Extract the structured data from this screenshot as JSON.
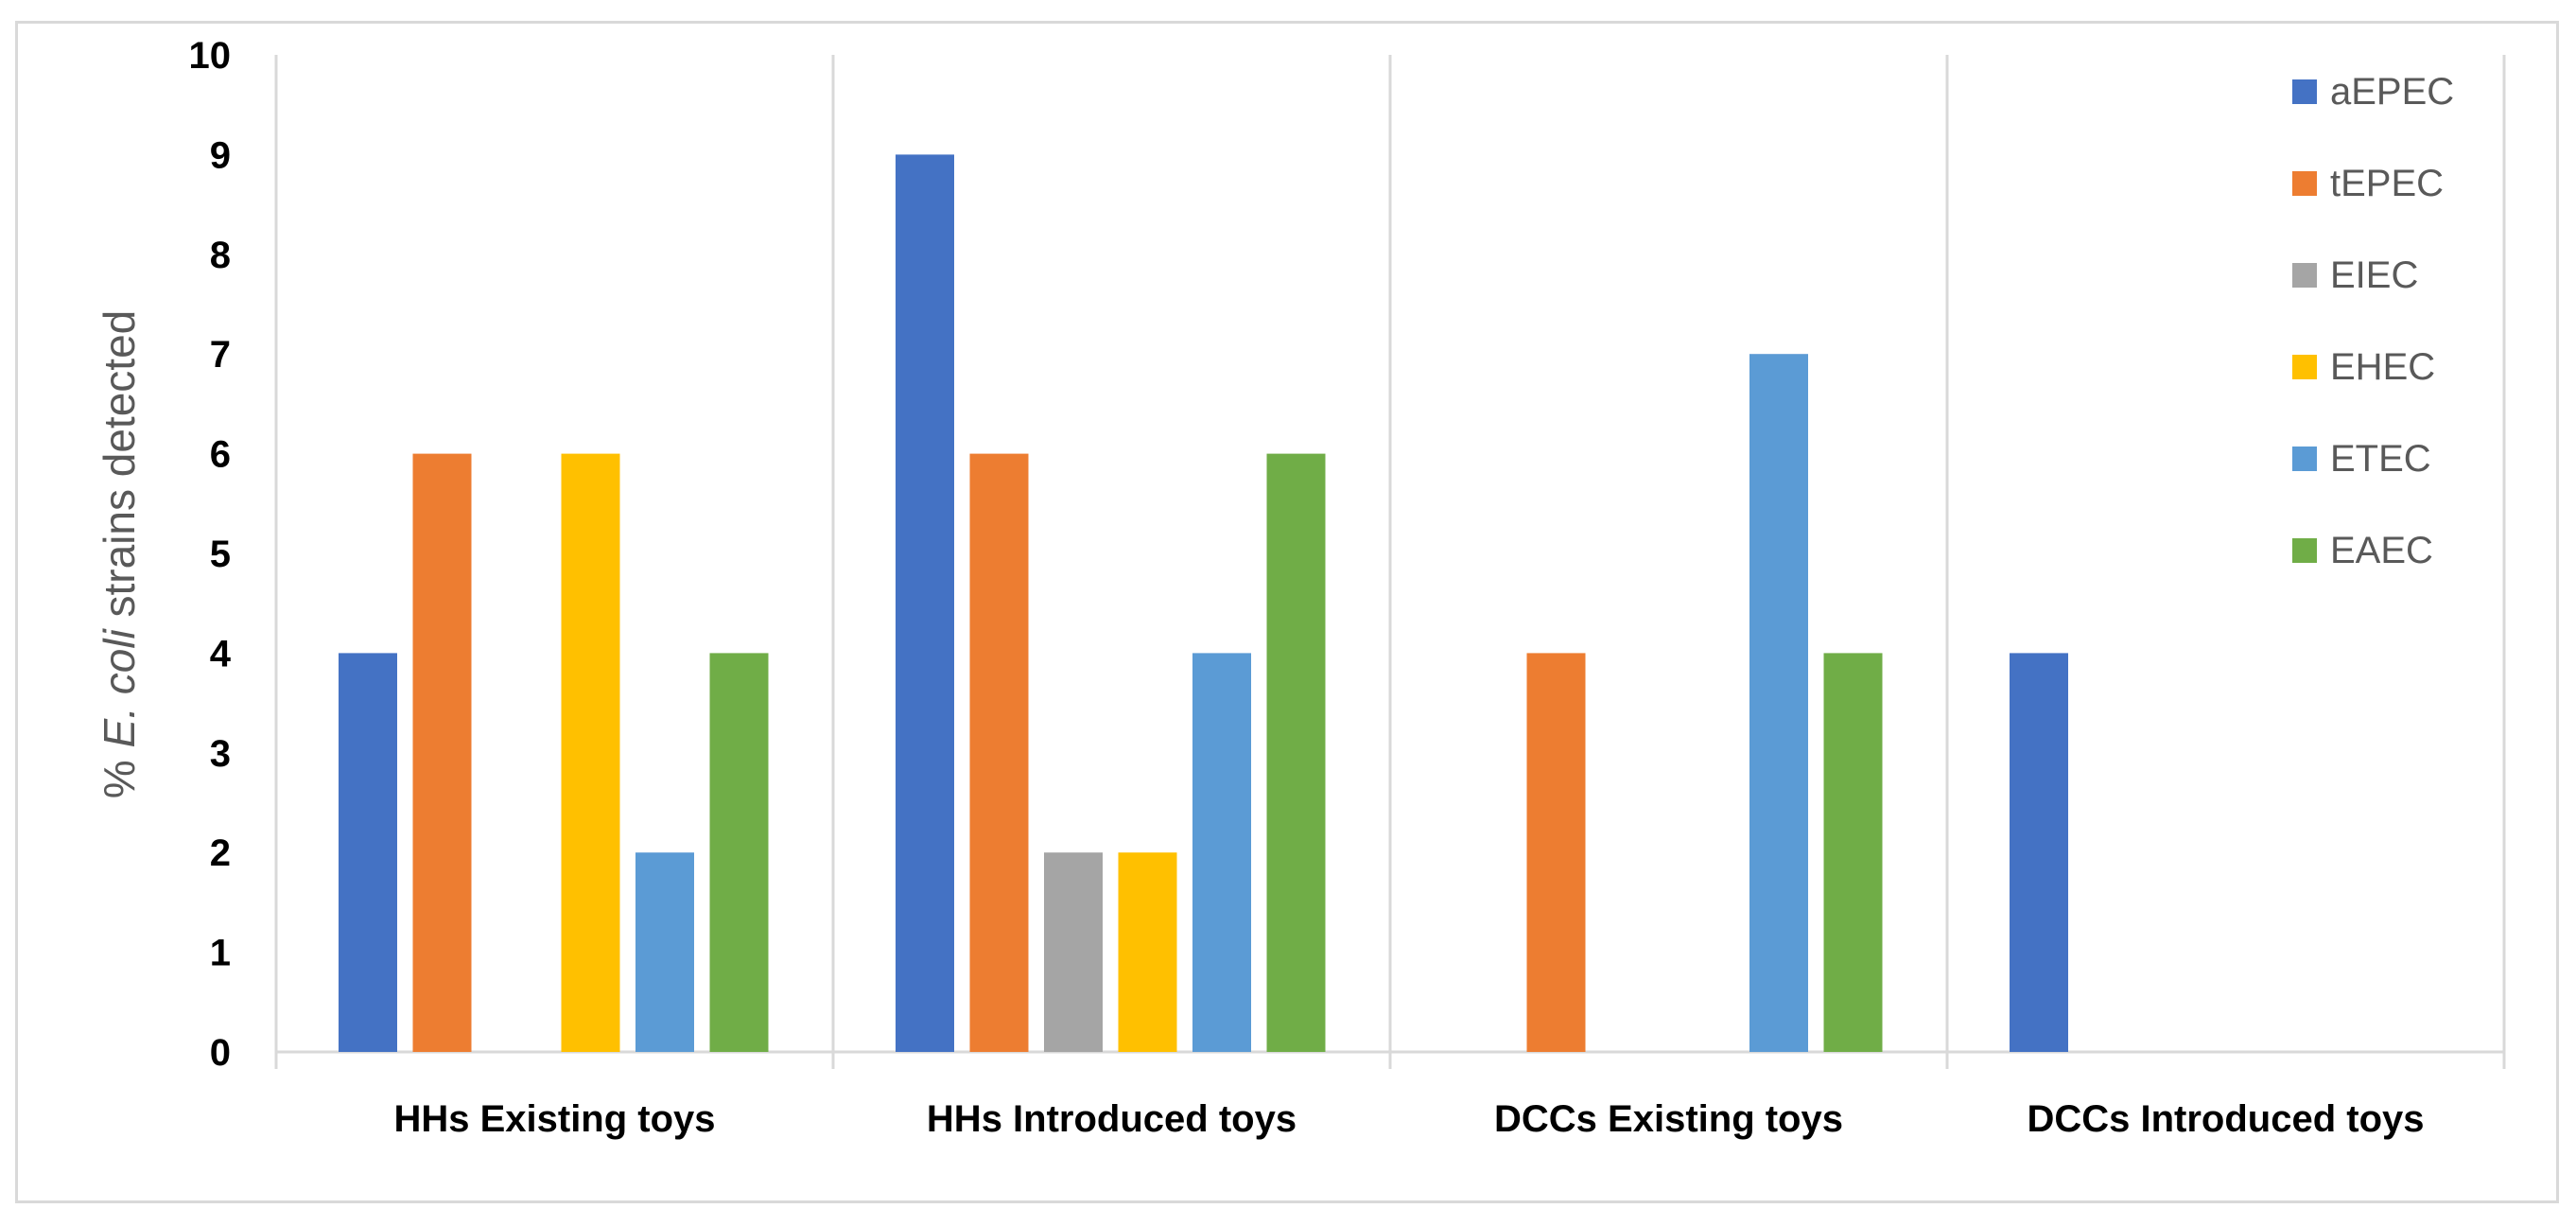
{
  "chart_data": {
    "type": "bar",
    "categories": [
      "HHs Existing toys",
      "HHs Introduced toys",
      "DCCs Existing toys",
      "DCCs Introduced toys"
    ],
    "series": [
      {
        "name": "aEPEC",
        "color": "#4472C4",
        "values": [
          4,
          9,
          0,
          4
        ]
      },
      {
        "name": "tEPEC",
        "color": "#ED7D31",
        "values": [
          6,
          6,
          4,
          0
        ]
      },
      {
        "name": "EIEC",
        "color": "#A5A5A5",
        "values": [
          0,
          2,
          0,
          0
        ]
      },
      {
        "name": "EHEC",
        "color": "#FFC000",
        "values": [
          6,
          2,
          0,
          0
        ]
      },
      {
        "name": "ETEC",
        "color": "#5B9BD5",
        "values": [
          2,
          4,
          7,
          0
        ]
      },
      {
        "name": "EAEC",
        "color": "#70AD47",
        "values": [
          4,
          6,
          4,
          0
        ]
      }
    ],
    "ylabel_prefix": "% ",
    "ylabel_italic": "E. coli",
    "ylabel_suffix": " strains detected",
    "xlabel": "",
    "ylim": [
      0,
      10
    ],
    "yticks": [
      "0",
      "1",
      "2",
      "3",
      "4",
      "5",
      "6",
      "7",
      "8",
      "9",
      "10"
    ],
    "legend_position": "top-right"
  }
}
